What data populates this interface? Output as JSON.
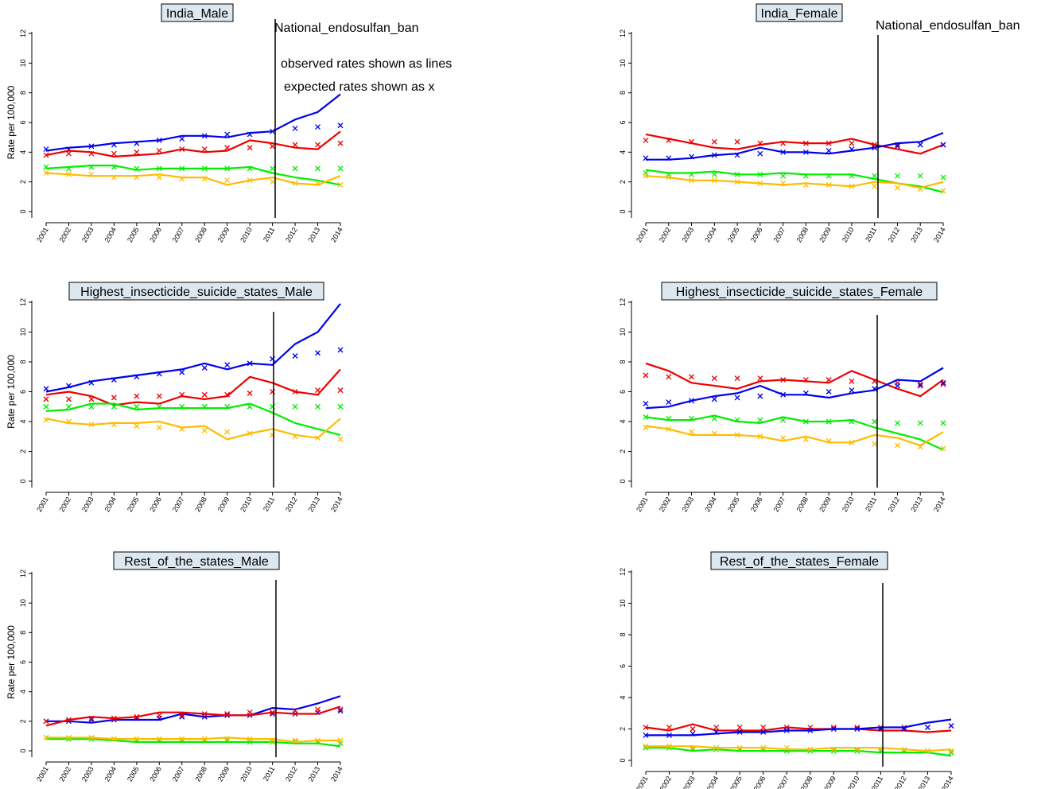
{
  "notes": {
    "ban_label": "National_endosulfan_ban",
    "observed": "observed rates shown as lines",
    "expected": "expected rates shown as x"
  },
  "chart_data": [
    {
      "type": "line",
      "title": "India_Male",
      "ylabel": "Rate per 100,000",
      "x": [
        "2001",
        "2002",
        "2003",
        "2004",
        "2005",
        "2006",
        "2007",
        "2008",
        "2009",
        "2010",
        "2011",
        "2012",
        "2013",
        "2014"
      ],
      "y_ticks": [
        0,
        2,
        4,
        6,
        8,
        10,
        12
      ],
      "ylim": [
        0,
        12
      ],
      "ban_year": 2011,
      "series": [
        {
          "color": "#0000ee",
          "observed": [
            4.1,
            4.3,
            4.4,
            4.6,
            4.7,
            4.8,
            5.1,
            5.1,
            5.0,
            5.3,
            5.4,
            6.2,
            6.7,
            7.9
          ],
          "expected": [
            4.2,
            4.2,
            4.4,
            4.5,
            4.6,
            4.8,
            4.9,
            5.1,
            5.2,
            5.2,
            5.4,
            5.6,
            5.7,
            5.8
          ]
        },
        {
          "color": "#ee0000",
          "observed": [
            3.8,
            4.1,
            4.0,
            3.7,
            3.8,
            3.9,
            4.2,
            4.0,
            4.1,
            4.8,
            4.6,
            4.3,
            4.2,
            5.4
          ],
          "expected": [
            3.8,
            3.9,
            3.9,
            3.9,
            4.0,
            4.1,
            4.2,
            4.2,
            4.3,
            4.3,
            4.4,
            4.5,
            4.5,
            4.6
          ]
        },
        {
          "color": "#00ee00",
          "observed": [
            2.9,
            3.0,
            3.1,
            3.1,
            2.8,
            2.9,
            2.9,
            2.9,
            2.9,
            3.0,
            2.6,
            2.3,
            2.1,
            1.8
          ],
          "expected": [
            3.0,
            2.9,
            3.0,
            3.0,
            2.9,
            2.9,
            2.9,
            2.9,
            2.9,
            2.9,
            2.9,
            2.9,
            2.9,
            2.9
          ]
        },
        {
          "color": "#ffbb00",
          "observed": [
            2.6,
            2.5,
            2.4,
            2.4,
            2.4,
            2.5,
            2.3,
            2.3,
            1.8,
            2.1,
            2.3,
            1.9,
            1.8,
            2.4
          ],
          "expected": [
            2.6,
            2.5,
            2.5,
            2.3,
            2.3,
            2.3,
            2.2,
            2.2,
            2.1,
            2.1,
            2.0,
            1.9,
            1.9,
            1.8
          ]
        }
      ]
    },
    {
      "type": "line",
      "title": "India_Female",
      "ylabel": "",
      "x": [
        "2001",
        "2002",
        "2003",
        "2004",
        "2005",
        "2006",
        "2007",
        "2008",
        "2009",
        "2010",
        "2011",
        "2012",
        "2013",
        "2014"
      ],
      "y_ticks": [
        0,
        2,
        4,
        6,
        8,
        10,
        12
      ],
      "ylim": [
        0,
        12
      ],
      "ban_year": 2011,
      "series": [
        {
          "color": "#ee0000",
          "observed": [
            5.2,
            4.9,
            4.6,
            4.3,
            4.2,
            4.5,
            4.7,
            4.6,
            4.6,
            4.9,
            4.5,
            4.2,
            3.9,
            4.5
          ],
          "expected": [
            4.8,
            4.8,
            4.7,
            4.7,
            4.7,
            4.6,
            4.6,
            4.6,
            4.6,
            4.6,
            4.5,
            4.5,
            4.5,
            4.5
          ]
        },
        {
          "color": "#0000ee",
          "observed": [
            3.5,
            3.5,
            3.6,
            3.8,
            3.9,
            4.3,
            4.0,
            4.0,
            3.9,
            4.1,
            4.3,
            4.6,
            4.7,
            5.3
          ],
          "expected": [
            3.6,
            3.6,
            3.7,
            3.8,
            3.8,
            3.9,
            4.0,
            4.0,
            4.1,
            4.2,
            4.3,
            4.4,
            4.5,
            4.5
          ]
        },
        {
          "color": "#00ee00",
          "observed": [
            2.8,
            2.6,
            2.6,
            2.7,
            2.5,
            2.5,
            2.6,
            2.5,
            2.5,
            2.5,
            2.2,
            1.9,
            1.7,
            1.3
          ],
          "expected": [
            2.6,
            2.5,
            2.5,
            2.5,
            2.5,
            2.5,
            2.4,
            2.4,
            2.4,
            2.4,
            2.4,
            2.4,
            2.4,
            2.3
          ]
        },
        {
          "color": "#ffbb00",
          "observed": [
            2.4,
            2.3,
            2.1,
            2.1,
            2.0,
            1.9,
            1.8,
            1.9,
            1.8,
            1.7,
            2.0,
            1.9,
            1.6,
            2.0
          ],
          "expected": [
            2.4,
            2.3,
            2.1,
            2.1,
            2.0,
            1.9,
            1.9,
            1.8,
            1.8,
            1.7,
            1.7,
            1.6,
            1.5,
            1.4
          ]
        }
      ]
    },
    {
      "type": "line",
      "title": "Highest_insecticide_suicide_states_Male",
      "ylabel": "Rate per 100,000",
      "x": [
        "2001",
        "2002",
        "2003",
        "2004",
        "2005",
        "2006",
        "2007",
        "2008",
        "2009",
        "2010",
        "2011",
        "2012",
        "2013",
        "2014"
      ],
      "y_ticks": [
        0,
        2,
        4,
        6,
        8,
        10,
        12
      ],
      "ylim": [
        0,
        12
      ],
      "ban_year": 2011,
      "series": [
        {
          "color": "#0000ee",
          "observed": [
            6.0,
            6.3,
            6.7,
            6.9,
            7.1,
            7.3,
            7.5,
            7.9,
            7.5,
            7.9,
            7.8,
            9.2,
            10.0,
            11.9
          ],
          "expected": [
            6.2,
            6.4,
            6.6,
            6.8,
            7.0,
            7.2,
            7.3,
            7.6,
            7.8,
            7.9,
            8.2,
            8.4,
            8.6,
            8.8
          ]
        },
        {
          "color": "#ee0000",
          "observed": [
            5.8,
            6.0,
            5.7,
            5.1,
            5.3,
            5.2,
            5.7,
            5.5,
            5.7,
            7.0,
            6.6,
            6.0,
            5.8,
            7.5
          ],
          "expected": [
            5.5,
            5.5,
            5.5,
            5.6,
            5.7,
            5.7,
            5.8,
            5.8,
            5.8,
            5.9,
            6.0,
            6.0,
            6.1,
            6.1
          ]
        },
        {
          "color": "#00ee00",
          "observed": [
            4.7,
            4.8,
            5.2,
            5.2,
            4.8,
            4.9,
            4.9,
            4.9,
            4.9,
            5.2,
            4.6,
            3.9,
            3.5,
            3.1
          ],
          "expected": [
            5.0,
            5.0,
            5.0,
            5.0,
            5.0,
            5.0,
            5.0,
            5.0,
            5.0,
            5.0,
            5.0,
            5.0,
            5.0,
            5.0
          ]
        },
        {
          "color": "#ffbb00",
          "observed": [
            4.2,
            3.9,
            3.8,
            3.9,
            3.9,
            4.0,
            3.6,
            3.7,
            2.8,
            3.2,
            3.5,
            3.1,
            2.9,
            4.2
          ],
          "expected": [
            4.1,
            4.0,
            3.8,
            3.8,
            3.7,
            3.6,
            3.5,
            3.4,
            3.3,
            3.2,
            3.1,
            3.0,
            2.9,
            2.8
          ]
        }
      ]
    },
    {
      "type": "line",
      "title": "Highest_insecticide_suicide_states_Female",
      "ylabel": "",
      "x": [
        "2001",
        "2002",
        "2003",
        "2004",
        "2005",
        "2006",
        "2007",
        "2008",
        "2009",
        "2010",
        "2011",
        "2012",
        "2013",
        "2014"
      ],
      "y_ticks": [
        0,
        2,
        4,
        6,
        8,
        10,
        12
      ],
      "ylim": [
        0,
        12
      ],
      "ban_year": 2011,
      "series": [
        {
          "color": "#ee0000",
          "observed": [
            7.9,
            7.4,
            6.6,
            6.4,
            6.2,
            6.7,
            6.8,
            6.7,
            6.6,
            7.4,
            6.8,
            6.2,
            5.7,
            6.8
          ],
          "expected": [
            7.1,
            7.0,
            7.0,
            6.9,
            6.9,
            6.9,
            6.8,
            6.8,
            6.8,
            6.7,
            6.7,
            6.6,
            6.5,
            6.5
          ]
        },
        {
          "color": "#0000ee",
          "observed": [
            4.9,
            5.0,
            5.4,
            5.7,
            5.9,
            6.4,
            5.8,
            5.8,
            5.6,
            5.9,
            6.1,
            6.8,
            6.7,
            7.6
          ],
          "expected": [
            5.2,
            5.3,
            5.4,
            5.5,
            5.6,
            5.7,
            5.8,
            5.9,
            6.0,
            6.1,
            6.2,
            6.4,
            6.4,
            6.6
          ]
        },
        {
          "color": "#00ee00",
          "observed": [
            4.3,
            4.1,
            4.1,
            4.4,
            4.0,
            3.9,
            4.3,
            4.0,
            4.0,
            4.1,
            3.6,
            3.2,
            2.8,
            2.1
          ],
          "expected": [
            4.3,
            4.2,
            4.2,
            4.2,
            4.1,
            4.1,
            4.1,
            4.0,
            4.0,
            4.0,
            4.0,
            3.9,
            3.9,
            3.9
          ]
        },
        {
          "color": "#ffbb00",
          "observed": [
            3.7,
            3.5,
            3.1,
            3.1,
            3.1,
            3.0,
            2.7,
            3.0,
            2.6,
            2.6,
            3.1,
            2.9,
            2.4,
            3.3
          ],
          "expected": [
            3.6,
            3.5,
            3.3,
            3.2,
            3.1,
            3.0,
            2.9,
            2.8,
            2.7,
            2.6,
            2.5,
            2.4,
            2.3,
            2.2
          ]
        }
      ]
    },
    {
      "type": "line",
      "title": "Rest_of_the_states_Male",
      "ylabel": "Rate per 100,000",
      "x": [
        "2001",
        "2002",
        "2003",
        "2004",
        "2005",
        "2006",
        "2007",
        "2008",
        "2009",
        "2010",
        "2011",
        "2012",
        "2013",
        "2014"
      ],
      "y_ticks": [
        0,
        2,
        4,
        6,
        8,
        10,
        12
      ],
      "ylim": [
        0,
        12
      ],
      "ban_year": 2011,
      "series": [
        {
          "color": "#0000ee",
          "observed": [
            2.0,
            2.0,
            1.9,
            2.1,
            2.1,
            2.1,
            2.5,
            2.3,
            2.4,
            2.4,
            2.9,
            2.8,
            3.2,
            3.7
          ],
          "expected": [
            2.0,
            2.0,
            2.1,
            2.1,
            2.2,
            2.2,
            2.3,
            2.3,
            2.4,
            2.4,
            2.5,
            2.5,
            2.6,
            2.7
          ]
        },
        {
          "color": "#ee0000",
          "observed": [
            1.7,
            2.1,
            2.3,
            2.2,
            2.3,
            2.6,
            2.6,
            2.5,
            2.4,
            2.4,
            2.6,
            2.5,
            2.5,
            3.0
          ],
          "expected": [
            2.0,
            2.1,
            2.2,
            2.2,
            2.3,
            2.4,
            2.4,
            2.5,
            2.5,
            2.6,
            2.6,
            2.7,
            2.8,
            2.8
          ]
        },
        {
          "color": "#00ee00",
          "observed": [
            0.8,
            0.8,
            0.8,
            0.7,
            0.6,
            0.6,
            0.6,
            0.6,
            0.6,
            0.6,
            0.6,
            0.5,
            0.5,
            0.3
          ],
          "expected": [
            0.9,
            0.8,
            0.8,
            0.8,
            0.7,
            0.7,
            0.7,
            0.7,
            0.7,
            0.6,
            0.6,
            0.6,
            0.6,
            0.5
          ]
        },
        {
          "color": "#ffbb00",
          "observed": [
            0.9,
            0.9,
            0.9,
            0.8,
            0.8,
            0.8,
            0.8,
            0.8,
            0.9,
            0.8,
            0.8,
            0.6,
            0.7,
            0.7
          ],
          "expected": [
            0.9,
            0.9,
            0.9,
            0.8,
            0.8,
            0.8,
            0.8,
            0.8,
            0.8,
            0.8,
            0.7,
            0.7,
            0.7,
            0.7
          ]
        }
      ]
    },
    {
      "type": "line",
      "title": "Rest_of_the_states_Female",
      "ylabel": "",
      "x": [
        "2001",
        "2002",
        "2003",
        "2004",
        "2005",
        "2006",
        "2007",
        "2008",
        "2009",
        "2010",
        "2011",
        "2012",
        "2013",
        "2014"
      ],
      "y_ticks": [
        0,
        2,
        4,
        6,
        8,
        10,
        12
      ],
      "ylim": [
        0,
        12
      ],
      "ban_year": 2011,
      "series": [
        {
          "color": "#ee0000",
          "observed": [
            2.1,
            1.9,
            2.3,
            1.9,
            1.9,
            1.9,
            2.1,
            2.0,
            2.0,
            2.0,
            1.9,
            1.9,
            1.8,
            1.9
          ],
          "expected": [
            2.1,
            2.1,
            2.0,
            2.1,
            2.1,
            2.1,
            2.1,
            2.1,
            2.1,
            2.1,
            2.1,
            2.1,
            2.1,
            2.2
          ]
        },
        {
          "color": "#0000ee",
          "observed": [
            1.6,
            1.6,
            1.6,
            1.7,
            1.8,
            1.8,
            1.9,
            1.9,
            2.0,
            2.0,
            2.1,
            2.1,
            2.4,
            2.6
          ],
          "expected": [
            1.6,
            1.6,
            1.7,
            1.8,
            1.8,
            1.8,
            1.9,
            1.9,
            2.0,
            2.0,
            2.0,
            2.0,
            2.1,
            2.2
          ]
        },
        {
          "color": "#00ee00",
          "observed": [
            0.8,
            0.8,
            0.6,
            0.7,
            0.6,
            0.6,
            0.6,
            0.6,
            0.6,
            0.6,
            0.5,
            0.5,
            0.5,
            0.3
          ],
          "expected": [
            0.8,
            0.8,
            0.7,
            0.7,
            0.7,
            0.7,
            0.6,
            0.6,
            0.6,
            0.6,
            0.6,
            0.6,
            0.6,
            0.5
          ]
        },
        {
          "color": "#ffbb00",
          "observed": [
            0.9,
            0.9,
            0.9,
            0.8,
            0.8,
            0.8,
            0.7,
            0.7,
            0.8,
            0.8,
            0.8,
            0.7,
            0.6,
            0.7
          ],
          "expected": [
            0.9,
            0.9,
            0.8,
            0.8,
            0.8,
            0.8,
            0.8,
            0.7,
            0.7,
            0.7,
            0.7,
            0.7,
            0.6,
            0.6
          ]
        }
      ]
    }
  ]
}
